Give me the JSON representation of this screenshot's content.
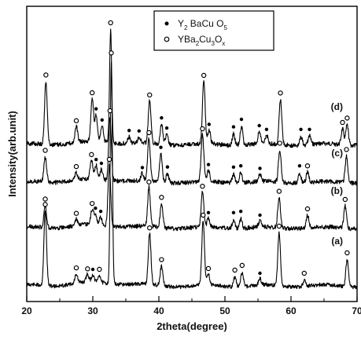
{
  "chart_data": {
    "type": "line",
    "xlabel": "2theta(degree)",
    "ylabel": "Intensity(arb.unit)",
    "xlim": [
      20,
      70
    ],
    "xticks": [
      "20",
      "30",
      "40",
      "50",
      "60",
      "70"
    ],
    "x_minor_step": 5,
    "y_ticks_labeled": false,
    "grid": false,
    "legend": {
      "placement": "top-right",
      "entries": [
        {
          "marker": "filled-dot",
          "parts": [
            [
              "Y",
              ""
            ],
            [
              "2",
              "sub"
            ],
            [
              " BaCu O",
              ""
            ],
            [
              "5",
              "sub"
            ]
          ]
        },
        {
          "marker": "open-circle",
          "parts": [
            [
              "YBa",
              ""
            ],
            [
              "2",
              "sub"
            ],
            [
              "Cu",
              ""
            ],
            [
              "3",
              "sub"
            ],
            [
              "O",
              ""
            ],
            [
              "x",
              "sub"
            ]
          ]
        }
      ]
    },
    "series": [
      {
        "name": "(a)",
        "peaks": [
          {
            "x": 22.8,
            "h": 95,
            "m": "o"
          },
          {
            "x": 27.5,
            "h": 12,
            "m": "o"
          },
          {
            "x": 29.2,
            "h": 10,
            "m": "o"
          },
          {
            "x": 30.0,
            "h": 9,
            "m": "*"
          },
          {
            "x": 31.0,
            "h": 9,
            "m": "o"
          },
          {
            "x": 32.8,
            "h": 285,
            "m": "o"
          },
          {
            "x": 38.6,
            "h": 65,
            "m": "o"
          },
          {
            "x": 40.4,
            "h": 25,
            "m": "o"
          },
          {
            "x": 46.7,
            "h": 82,
            "m": "o"
          },
          {
            "x": 47.5,
            "h": 14,
            "m": "o"
          },
          {
            "x": 51.5,
            "h": 12,
            "m": "o"
          },
          {
            "x": 52.6,
            "h": 18,
            "m": "o"
          },
          {
            "x": 55.3,
            "h": 8,
            "m": "*"
          },
          {
            "x": 58.2,
            "h": 68,
            "m": "o"
          },
          {
            "x": 62.0,
            "h": 8,
            "m": "o"
          },
          {
            "x": 68.5,
            "h": 34,
            "m": "o"
          }
        ]
      },
      {
        "name": "(b)",
        "peaks": [
          {
            "x": 22.8,
            "h": 35,
            "m": "o"
          },
          {
            "x": 27.5,
            "h": 10,
            "m": "o"
          },
          {
            "x": 29.9,
            "h": 24,
            "m": "o"
          },
          {
            "x": 30.4,
            "h": 16,
            "m": "*"
          },
          {
            "x": 31.2,
            "h": 12,
            "m": "*"
          },
          {
            "x": 32.5,
            "h": 95,
            "m": "o"
          },
          {
            "x": 38.5,
            "h": 62,
            "m": "o"
          },
          {
            "x": 40.4,
            "h": 38,
            "m": "o"
          },
          {
            "x": 46.6,
            "h": 56,
            "m": "o"
          },
          {
            "x": 47.5,
            "h": 14,
            "m": "*"
          },
          {
            "x": 51.3,
            "h": 14,
            "m": "*"
          },
          {
            "x": 52.4,
            "h": 16,
            "m": "*"
          },
          {
            "x": 55.3,
            "h": 10,
            "m": "*"
          },
          {
            "x": 58.2,
            "h": 48,
            "m": "o"
          },
          {
            "x": 62.5,
            "h": 20,
            "m": "o"
          },
          {
            "x": 68.2,
            "h": 35,
            "m": "o"
          }
        ]
      },
      {
        "name": "(c)",
        "peaks": [
          {
            "x": 22.8,
            "h": 40,
            "m": "o"
          },
          {
            "x": 27.5,
            "h": 12,
            "m": "o"
          },
          {
            "x": 29.8,
            "h": 30,
            "m": "o"
          },
          {
            "x": 30.5,
            "h": 22,
            "m": "*"
          },
          {
            "x": 31.3,
            "h": 16,
            "m": "*"
          },
          {
            "x": 32.6,
            "h": 100,
            "m": "o"
          },
          {
            "x": 37.5,
            "h": 12,
            "m": "*"
          },
          {
            "x": 38.5,
            "h": 68,
            "m": "o"
          },
          {
            "x": 40.3,
            "h": 45,
            "m": "*"
          },
          {
            "x": 41.3,
            "h": 14,
            "m": "*"
          },
          {
            "x": 46.6,
            "h": 75,
            "m": "o"
          },
          {
            "x": 47.5,
            "h": 18,
            "m": "*"
          },
          {
            "x": 51.3,
            "h": 14,
            "m": "*"
          },
          {
            "x": 52.4,
            "h": 16,
            "m": "*"
          },
          {
            "x": 55.3,
            "h": 12,
            "m": "*"
          },
          {
            "x": 58.3,
            "h": 52,
            "m": "o"
          },
          {
            "x": 61.3,
            "h": 16,
            "m": "*"
          },
          {
            "x": 62.5,
            "h": 16,
            "m": "o"
          },
          {
            "x": 68.4,
            "h": 42,
            "m": "o"
          }
        ]
      },
      {
        "name": "(d)",
        "peaks": [
          {
            "x": 22.9,
            "h": 100,
            "m": "o"
          },
          {
            "x": 27.5,
            "h": 25,
            "m": "o"
          },
          {
            "x": 29.9,
            "h": 68,
            "m": "o"
          },
          {
            "x": 30.5,
            "h": 42,
            "m": "*"
          },
          {
            "x": 31.4,
            "h": 25,
            "m": "*"
          },
          {
            "x": 32.7,
            "h": 180,
            "m": "o"
          },
          {
            "x": 35.5,
            "h": 10,
            "m": "*"
          },
          {
            "x": 37.0,
            "h": 10,
            "m": "*"
          },
          {
            "x": 38.6,
            "h": 68,
            "m": "o"
          },
          {
            "x": 40.4,
            "h": 32,
            "m": "*"
          },
          {
            "x": 41.2,
            "h": 16,
            "m": "*"
          },
          {
            "x": 46.8,
            "h": 100,
            "m": "o"
          },
          {
            "x": 47.6,
            "h": 22,
            "m": "*"
          },
          {
            "x": 51.3,
            "h": 18,
            "m": "*"
          },
          {
            "x": 52.5,
            "h": 30,
            "m": "*"
          },
          {
            "x": 55.2,
            "h": 20,
            "m": "*"
          },
          {
            "x": 56.3,
            "h": 14,
            "m": "*"
          },
          {
            "x": 58.4,
            "h": 72,
            "m": "o"
          },
          {
            "x": 61.5,
            "h": 14,
            "m": "*"
          },
          {
            "x": 62.8,
            "h": 14,
            "m": "*"
          },
          {
            "x": 67.8,
            "h": 25,
            "m": "o"
          },
          {
            "x": 68.5,
            "h": 32,
            "m": "o"
          }
        ]
      }
    ]
  }
}
